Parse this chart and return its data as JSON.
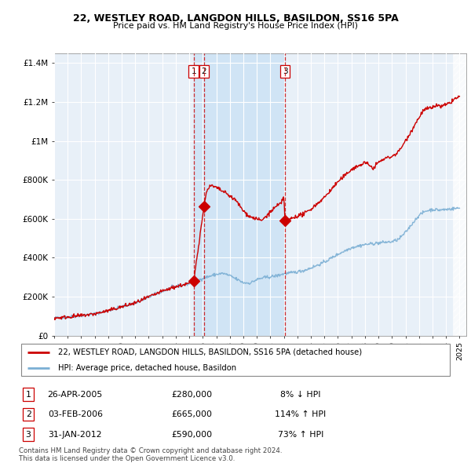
{
  "title": "22, WESTLEY ROAD, LANGDON HILLS, BASILDON, SS16 5PA",
  "subtitle": "Price paid vs. HM Land Registry's House Price Index (HPI)",
  "ylabel_ticks": [
    "£0",
    "£200K",
    "£400K",
    "£600K",
    "£800K",
    "£1M",
    "£1.2M",
    "£1.4M"
  ],
  "ytick_values": [
    0,
    200000,
    400000,
    600000,
    800000,
    1000000,
    1200000,
    1400000
  ],
  "ylim": [
    0,
    1450000
  ],
  "x_start_year": 1995,
  "x_end_year": 2025,
  "hpi_color": "#7bafd4",
  "price_color": "#cc0000",
  "transaction_color": "#cc0000",
  "bg_color": "#e8f0f8",
  "shade_color": "#d0e4f5",
  "transactions": [
    {
      "label": "1",
      "price": 280000,
      "x": 2005.32
    },
    {
      "label": "2",
      "price": 665000,
      "x": 2006.09
    },
    {
      "label": "3",
      "price": 590000,
      "x": 2012.08
    }
  ],
  "legend_label_price": "22, WESTLEY ROAD, LANGDON HILLS, BASILDON, SS16 5PA (detached house)",
  "legend_label_hpi": "HPI: Average price, detached house, Basildon",
  "footnote": "Contains HM Land Registry data © Crown copyright and database right 2024.\nThis data is licensed under the Open Government Licence v3.0.",
  "table_rows": [
    [
      "1",
      "26-APR-2005",
      "£280,000",
      "8% ↓ HPI"
    ],
    [
      "2",
      "03-FEB-2006",
      "£665,000",
      "114% ↑ HPI"
    ],
    [
      "3",
      "31-JAN-2012",
      "£590,000",
      "73% ↑ HPI"
    ]
  ]
}
